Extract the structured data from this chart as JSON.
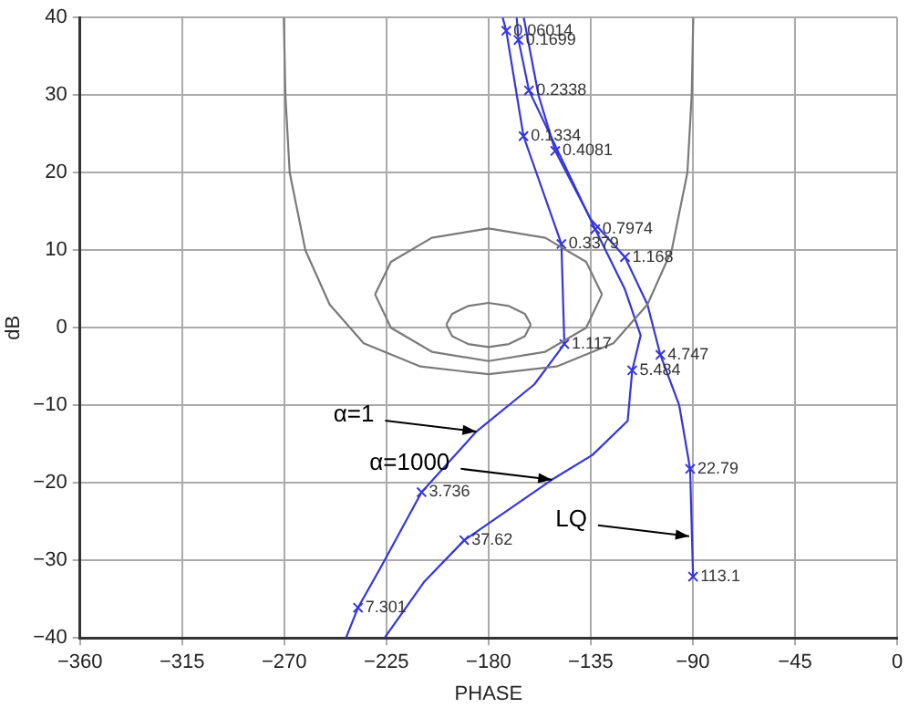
{
  "chart_data": {
    "type": "line",
    "xlabel": "PHASE",
    "ylabel": "dB",
    "xlim": [
      -360,
      0
    ],
    "ylim": [
      -40,
      40
    ],
    "xticks": [
      -360,
      -315,
      -270,
      -225,
      -180,
      -135,
      -90,
      -45,
      0
    ],
    "yticks": [
      -40,
      -30,
      -20,
      -10,
      0,
      10,
      20,
      30,
      40
    ],
    "grid": true,
    "legend": false,
    "series": [
      {
        "type": "line",
        "color": "#7a7a7a",
        "marker": "none",
        "x": [
          -270.2,
          -269.5,
          -267.6,
          -260.7,
          -250,
          -235,
          -210,
          -180,
          -150,
          -125,
          -110,
          -99.3,
          -92.4,
          -90.5,
          -89.8
        ],
        "values": [
          40,
          30,
          20,
          10,
          3,
          -2,
          -5,
          -6,
          -5,
          -2,
          3,
          10,
          20,
          30,
          40
        ]
      },
      {
        "type": "line",
        "color": "#7a7a7a",
        "marker": "none",
        "x": [
          -230,
          -223,
          -205,
          -180,
          -155,
          -137,
          -130
        ],
        "values": [
          4.3,
          8.5,
          11.6,
          12.8,
          11.6,
          8.5,
          4.3
        ]
      },
      {
        "type": "line",
        "color": "#7a7a7a",
        "marker": "none",
        "x": [
          -230,
          -223,
          -205,
          -180,
          -155,
          -137,
          -130
        ],
        "values": [
          4.3,
          0,
          -3.1,
          -4.3,
          -3.1,
          0,
          4.3
        ]
      },
      {
        "type": "line",
        "color": "#7a7a7a",
        "marker": "none",
        "x": [
          -198.6,
          -196,
          -189,
          -180,
          -171,
          -164,
          -161.4
        ],
        "values": [
          0.4,
          1.8,
          2.8,
          3.2,
          2.8,
          1.8,
          0.4
        ]
      },
      {
        "type": "line",
        "color": "#7a7a7a",
        "marker": "none",
        "x": [
          -198.6,
          -196,
          -189,
          -180,
          -171,
          -164,
          -161.4
        ],
        "values": [
          0.4,
          -1.1,
          -2.1,
          -2.5,
          -2.1,
          -1.1,
          0.4
        ]
      },
      {
        "type": "line",
        "color": "#3535e0",
        "marker": "none",
        "x": [
          -173.8,
          -172.2,
          -164.6,
          -147.9,
          -146.6,
          -159.8,
          -185.4,
          -209.5,
          -227.3,
          -237.5,
          -242.8
        ],
        "values": [
          40,
          38.3,
          24.7,
          10.8,
          -2.1,
          -7.3,
          -13.4,
          -21.2,
          -30.8,
          -36.1,
          -40
        ]
      },
      {
        "type": "line",
        "color": "#3535e0",
        "marker": "none",
        "x": [
          -167.6,
          -166.8,
          -162.2,
          -133,
          -120,
          -113,
          -116.7,
          -118.7,
          -134.2,
          -152.1,
          -190.7,
          -208.2,
          -225.8
        ],
        "values": [
          40,
          37.1,
          30.6,
          12.7,
          5,
          -1,
          -5.5,
          -12,
          -16.4,
          -19.6,
          -27.4,
          -32.7,
          -40
        ]
      },
      {
        "type": "line",
        "color": "#3535e0",
        "marker": "none",
        "x": [
          -164.5,
          -158,
          -150.6,
          -135,
          -119.9,
          -110,
          -104.3,
          -96,
          -91.2,
          -89.9
        ],
        "values": [
          40,
          30,
          22.8,
          14,
          9.1,
          3,
          -3.5,
          -10,
          -18.2,
          -32.1
        ]
      },
      {
        "type": "scatter",
        "color": "#3535e0",
        "marker": "cross",
        "x": [
          -172.2,
          -166.8,
          -162.2,
          -164.6,
          -150.6,
          -133,
          -147.9,
          -119.9,
          -146.6,
          -104.3,
          -116.7,
          -91.2,
          -209.5,
          -190.7,
          -89.9,
          -237.5
        ],
        "values": [
          38.3,
          37.1,
          30.6,
          24.7,
          22.8,
          12.7,
          10.8,
          9.1,
          -2.1,
          -3.5,
          -5.5,
          -18.2,
          -21.2,
          -27.4,
          -32.1,
          -36.1
        ]
      }
    ],
    "annotations": [
      {
        "text": "0.06014",
        "x": -172.2,
        "y": 38.3
      },
      {
        "text": "0.1699",
        "x": -166.8,
        "y": 37.1
      },
      {
        "text": "0.2338",
        "x": -162.2,
        "y": 30.6
      },
      {
        "text": "0.1334",
        "x": -164.6,
        "y": 24.7
      },
      {
        "text": "0.4081",
        "x": -150.6,
        "y": 22.8
      },
      {
        "text": "0.7974",
        "x": -133,
        "y": 12.7
      },
      {
        "text": "0.3379",
        "x": -147.9,
        "y": 10.8
      },
      {
        "text": "1.168",
        "x": -119.9,
        "y": 9.1
      },
      {
        "text": "1.117",
        "x": -146.6,
        "y": -2.1
      },
      {
        "text": "4.747",
        "x": -104.3,
        "y": -3.5
      },
      {
        "text": "5.484",
        "x": -116.7,
        "y": -5.5
      },
      {
        "text": "22.79",
        "x": -91.2,
        "y": -18.2
      },
      {
        "text": "3.736",
        "x": -209.5,
        "y": -21.2
      },
      {
        "text": "37.62",
        "x": -190.7,
        "y": -27.4
      },
      {
        "text": "113.1",
        "x": -89.9,
        "y": -32.1
      },
      {
        "text": "7.301",
        "x": -237.5,
        "y": -36.1
      },
      {
        "text": "α=1",
        "x": -185.4,
        "y": -13.4
      },
      {
        "text": "α=1000",
        "x": -152.1,
        "y": -19.6
      },
      {
        "text": "LQ",
        "x": -91.6,
        "y": -26.9
      }
    ]
  }
}
